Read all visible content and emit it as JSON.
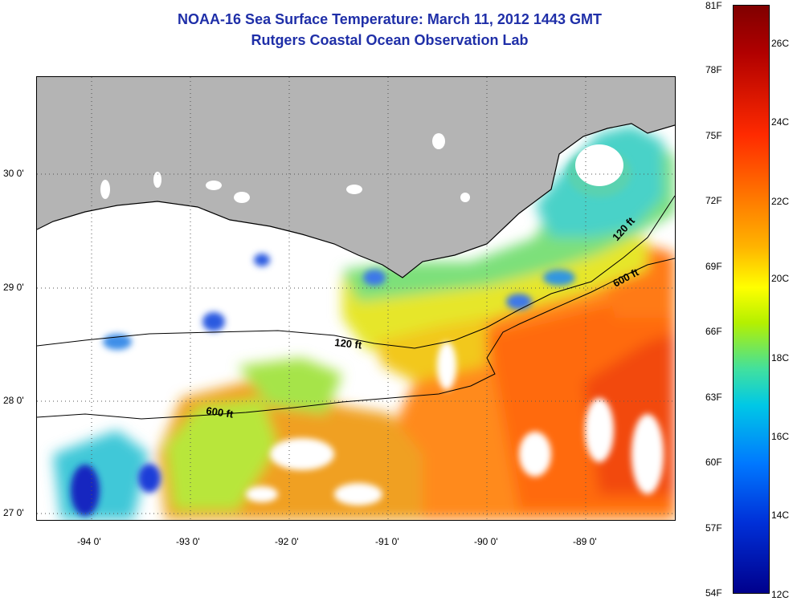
{
  "title": {
    "line1": "NOAA-16 Sea Surface Temperature:  March 11, 2012 1443 GMT",
    "line2": "Rutgers Coastal Ocean Observation Lab"
  },
  "map": {
    "lon_labels": [
      "-94 0'",
      "-93 0'",
      "-92 0'",
      "-91 0'",
      "-90 0'",
      "-89 0'"
    ],
    "lat_labels": [
      "30 0'",
      "29 0'",
      "28 0'",
      "27 0'"
    ],
    "contour_labels": [
      "120 ft",
      "600 ft",
      "120 ft",
      "600 ft"
    ],
    "grid": "dotted",
    "colors": {
      "land": "#b4b4b4",
      "no_data": "#ffffff",
      "coastline": "#000000"
    }
  },
  "colorbar": {
    "fahrenheit_labels": [
      "81F",
      "78F",
      "75F",
      "72F",
      "69F",
      "66F",
      "63F",
      "60F",
      "57F",
      "54F"
    ],
    "celsius_labels": [
      "26C",
      "24C",
      "22C",
      "20C",
      "18C",
      "16C",
      "14C",
      "12C"
    ]
  }
}
